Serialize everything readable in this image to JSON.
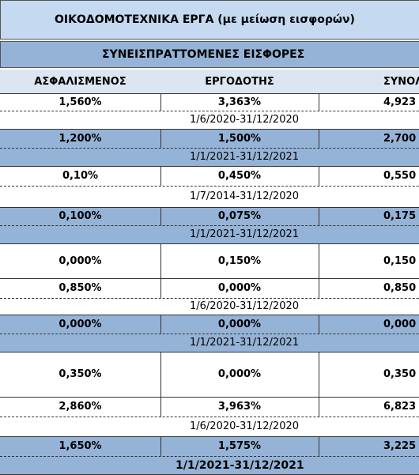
{
  "title": "ΟΙΚΟΔΟΜΟΤΕΧΝΙΚΑ ΕΡΓΑ (με μείωση εισφορών)",
  "subtitle": "ΣΥΝΕΙΣΠΡΑΤΤΟΜΕΝΕΣ ΕΙΣΦΟΡΕΣ",
  "columns": [
    "ΑΣΦΑΛΙΣΜΕΝΟΣ",
    "ΕΡΓΟΔΟΤΗΣ",
    "ΣΥΝΟΛ"
  ],
  "rows": [
    {
      "cells": [
        "1,560%",
        "3,363%",
        "4,923"
      ],
      "period": "1/6/2020-31/12/2020"
    },
    {
      "cells": [
        "1,200%",
        "1,500%",
        "2,700"
      ],
      "period": "1/1/2021-31/12/2021"
    },
    {
      "cells": [
        "0,10%",
        "0,450%",
        "0,550"
      ],
      "period": "1/7/2014-31/12/2020"
    },
    {
      "cells": [
        "0,100%",
        "0,075%",
        "0,175"
      ],
      "period": "1/1/2021-31/12/2021"
    },
    {
      "cells": [
        "0,000%",
        "0,150%",
        "0,150"
      ]
    },
    {
      "cells": [
        "0,850%",
        "0,000%",
        "0,850"
      ],
      "period": "1/6/2020-31/12/2020"
    },
    {
      "cells": [
        "0,000%",
        "0,000%",
        "0,000"
      ],
      "period": "1/1/2021-31/12/2021"
    },
    {
      "cells": [
        "0,350%",
        "0,000%",
        "0,350"
      ]
    },
    {
      "cells": [
        "2,860%",
        "3,963%",
        "6,823"
      ],
      "period": "1/6/2020-31/12/2020"
    },
    {
      "cells": [
        "1,650%",
        "1,575%",
        "3,225"
      ],
      "period": "1/1/2021-31/12/2021"
    }
  ]
}
